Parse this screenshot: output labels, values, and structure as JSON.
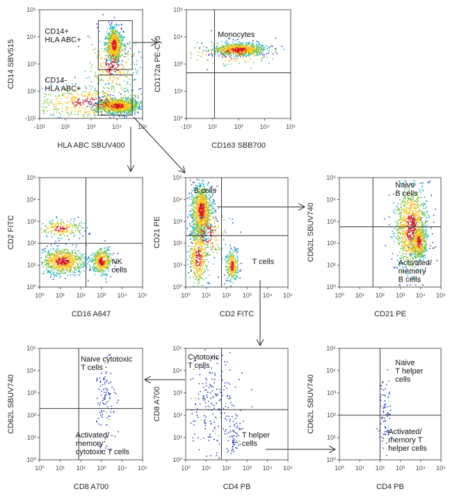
{
  "panels": [
    {
      "x_label": "HLA ABC SBUV400",
      "y_label": "CD14 SBV515",
      "x_ticks": [
        "-10¹",
        "10²",
        "10³",
        "10⁴",
        "10⁵"
      ],
      "y_ticks": [
        "-10¹",
        "10²",
        "10³",
        "10⁴",
        "10⁵"
      ],
      "gates": [
        {
          "lines": [
            "CD14+",
            "HLA ABC+"
          ]
        },
        {
          "lines": [
            "CD14-",
            "HLA ABC+"
          ]
        }
      ]
    },
    {
      "x_label": "CD163 SBB700",
      "y_label": "CD172a PE-Cy5",
      "x_ticks": [
        "-10¹",
        "10²",
        "10³",
        "10⁴",
        "10⁵"
      ],
      "y_ticks": [
        "10⁰",
        "10²",
        "10³",
        "10⁴",
        "10⁵"
      ],
      "gates": [
        {
          "lines": [
            "Monocytes"
          ]
        }
      ]
    },
    {
      "x_label": "CD16 A647",
      "y_label": "CD2 FITC",
      "x_ticks": [
        "10⁰",
        "10¹",
        "10²",
        "10³",
        "10⁴",
        "10⁵"
      ],
      "y_ticks": [
        "10⁰",
        "10¹",
        "10²",
        "10³",
        "10⁴",
        "10⁵"
      ],
      "gates": [
        {
          "lines": [
            "NK",
            "cells"
          ]
        }
      ]
    },
    {
      "x_label": "CD2 FITC",
      "y_label": "CD21 PE",
      "x_ticks": [
        "10⁰",
        "10¹",
        "10²",
        "10³",
        "10⁴",
        "10⁵"
      ],
      "y_ticks": [
        "10⁰",
        "10¹",
        "10²",
        "10³",
        "10⁴",
        "10⁵"
      ],
      "gates": [
        {
          "lines": [
            "B cells"
          ]
        },
        {
          "lines": [
            "T cells"
          ]
        }
      ]
    },
    {
      "x_label": "CD21 PE",
      "y_label": "CD62L SBUV740",
      "x_ticks": [
        "10⁰",
        "10¹",
        "10²",
        "10³",
        "10⁴",
        "10⁵"
      ],
      "y_ticks": [
        "10⁰",
        "10¹",
        "10²",
        "10³",
        "10⁴",
        "10⁵"
      ],
      "gates": [
        {
          "lines": [
            "Naive",
            "B cells"
          ]
        },
        {
          "lines": [
            "Activated/",
            "memory",
            "B cells"
          ]
        }
      ]
    },
    {
      "x_label": "CD8 A700",
      "y_label": "CD62L SBUV740",
      "x_ticks": [
        "10⁰",
        "10¹",
        "10²",
        "10³",
        "10⁴",
        "10⁵"
      ],
      "y_ticks": [
        "10⁰",
        "10¹",
        "10²",
        "10³",
        "10⁴",
        "10⁵"
      ],
      "gates": [
        {
          "lines": [
            "Naive cytotoxic",
            "T cells"
          ]
        },
        {
          "lines": [
            "Activated/",
            "memory",
            "cytotoxic T cells"
          ]
        }
      ]
    },
    {
      "x_label": "CD4 PB",
      "y_label": "CD8 A700",
      "x_ticks": [
        "10⁰",
        "10¹",
        "10²",
        "10³",
        "10⁴",
        "10⁵"
      ],
      "y_ticks": [
        "10⁰",
        "10¹",
        "10²",
        "10³",
        "10⁴",
        "10⁵"
      ],
      "gates": [
        {
          "lines": [
            "Cytotoxic",
            "T cells"
          ]
        },
        {
          "lines": [
            "T helper",
            "cells"
          ]
        }
      ]
    },
    {
      "x_label": "CD4 PB",
      "y_label": "CD62L SBUV740",
      "x_ticks": [
        "10⁰",
        "10¹",
        "10²",
        "10³",
        "10⁴",
        "10⁵"
      ],
      "y_ticks": [
        "10⁰",
        "10¹",
        "10²",
        "10³",
        "10⁴",
        "10⁵"
      ],
      "gates": [
        {
          "lines": [
            "Naive",
            "T helper",
            "cells"
          ]
        },
        {
          "lines": [
            "Activated/",
            "memory T",
            "helper cells"
          ]
        }
      ]
    }
  ]
}
